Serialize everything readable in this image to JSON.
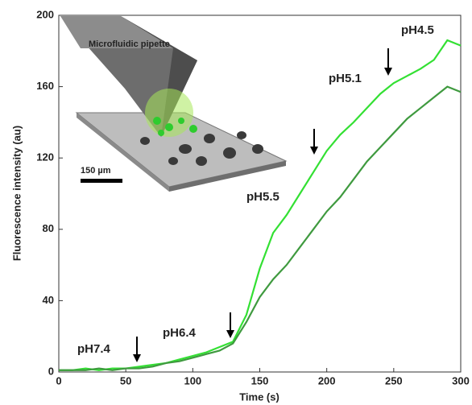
{
  "chart_data": {
    "type": "line",
    "xlabel": "Time (s)",
    "ylabel": "Fluorescence intensity (au)",
    "x": [
      0,
      10,
      20,
      30,
      40,
      50,
      60,
      70,
      80,
      90,
      100,
      110,
      120,
      130,
      140,
      150,
      160,
      170,
      180,
      190,
      200,
      210,
      220,
      230,
      240,
      250,
      260,
      270,
      280,
      290,
      300
    ],
    "series": [
      {
        "color": "#33e033",
        "values": [
          1,
          1,
          2,
          1,
          2,
          2,
          3,
          4,
          5,
          7,
          9,
          11,
          14,
          17,
          32,
          58,
          78,
          88,
          100,
          112,
          124,
          133,
          140,
          148,
          156,
          162,
          166,
          170,
          175,
          186,
          183
        ]
      },
      {
        "color": "#3f9a3f",
        "values": [
          1,
          1,
          1,
          2,
          1,
          2,
          2,
          3,
          5,
          6,
          8,
          10,
          12,
          16,
          28,
          42,
          52,
          60,
          70,
          80,
          90,
          98,
          108,
          118,
          126,
          134,
          142,
          148,
          154,
          160,
          157
        ]
      }
    ],
    "xlim": [
      0,
      300
    ],
    "xticks": [
      0,
      50,
      100,
      150,
      200,
      250,
      300
    ],
    "ylim": [
      0,
      200
    ],
    "yticks": [
      0,
      40,
      80,
      120,
      160,
      200
    ],
    "annotations": [
      "pH7.4",
      "pH6.4",
      "pH5.5",
      "pH5.1",
      "pH4.5"
    ],
    "inset": {
      "label": "Microfluidic pipette",
      "scale_bar": "150 µm"
    }
  }
}
